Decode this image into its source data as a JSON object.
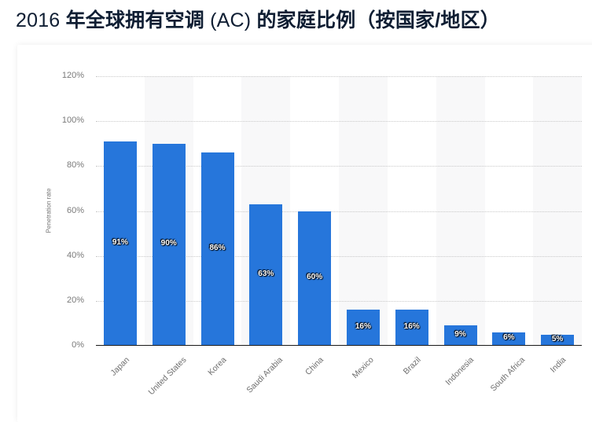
{
  "header": {
    "title_year": "2016 ",
    "title_main": "年全球拥有空调 ",
    "title_ac": "(AC) ",
    "title_rest": "的家庭比例（按国家/地区）"
  },
  "chart": {
    "ylabel": "Penetration rate",
    "yticks": [
      "0%",
      "20%",
      "40%",
      "60%",
      "80%",
      "100%",
      "120%"
    ],
    "bars": [
      {
        "category": "Japan",
        "value": 91,
        "label": "91%"
      },
      {
        "category": "United States",
        "value": 90,
        "label": "90%"
      },
      {
        "category": "Korea",
        "value": 86,
        "label": "86%"
      },
      {
        "category": "Saudi Arabia",
        "value": 63,
        "label": "63%"
      },
      {
        "category": "China",
        "value": 60,
        "label": "60%"
      },
      {
        "category": "Mexico",
        "value": 16,
        "label": "16%"
      },
      {
        "category": "Brazil",
        "value": 16,
        "label": "16%"
      },
      {
        "category": "Indonesia",
        "value": 9,
        "label": "9%"
      },
      {
        "category": "South Africa",
        "value": 6,
        "label": "6%"
      },
      {
        "category": "India",
        "value": 5,
        "label": "5%"
      }
    ],
    "bar_color": "#2676db"
  },
  "chart_data": {
    "type": "bar",
    "title": "2016 年全球拥有空调 (AC) 的家庭比例（按国家/地区）",
    "categories": [
      "Japan",
      "United States",
      "Korea",
      "Saudi Arabia",
      "China",
      "Mexico",
      "Brazil",
      "Indonesia",
      "South Africa",
      "India"
    ],
    "values": [
      91,
      90,
      86,
      63,
      60,
      16,
      16,
      9,
      6,
      5
    ],
    "data_labels": [
      "91%",
      "90%",
      "86%",
      "63%",
      "60%",
      "16%",
      "16%",
      "9%",
      "6%",
      "5%"
    ],
    "xlabel": "",
    "ylabel": "Penetration rate",
    "ylim": [
      0,
      120
    ],
    "yticks": [
      0,
      20,
      40,
      60,
      80,
      100,
      120
    ],
    "ytick_format": "percent",
    "grid": true,
    "legend": null,
    "bar_color": "#2676db"
  }
}
